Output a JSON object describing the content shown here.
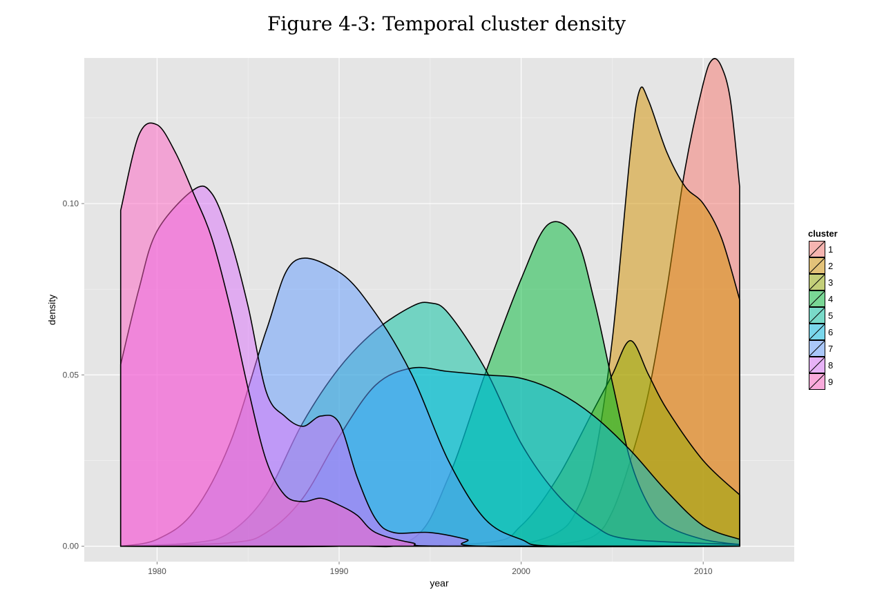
{
  "figure_title": "Figure 4-3: Temporal cluster density",
  "chart_data": {
    "type": "area",
    "title": "",
    "xlabel": "year",
    "ylabel": "density",
    "xlim": [
      1976,
      2015
    ],
    "ylim": [
      -0.0045,
      0.1425
    ],
    "x_ticks": [
      1980,
      1990,
      2000,
      2010
    ],
    "y_ticks": [
      0.0,
      0.05,
      0.1
    ],
    "y_tick_labels": [
      "0.00",
      "0.05",
      "0.10"
    ],
    "grid": true,
    "legend": {
      "title": "cluster",
      "position": "right"
    },
    "series": [
      {
        "name": "1",
        "color": "#F8766D",
        "points": [
          [
            1978,
            0
          ],
          [
            1980,
            0
          ],
          [
            1990,
            0
          ],
          [
            1995,
            0
          ],
          [
            1998,
            0
          ],
          [
            2000,
            0
          ],
          [
            2002,
            0.0005
          ],
          [
            2004,
            0.003
          ],
          [
            2005,
            0.01
          ],
          [
            2006,
            0.025
          ],
          [
            2007,
            0.045
          ],
          [
            2008,
            0.075
          ],
          [
            2009,
            0.11
          ],
          [
            2010,
            0.135
          ],
          [
            2010.5,
            0.142
          ],
          [
            2011,
            0.14
          ],
          [
            2011.5,
            0.13
          ],
          [
            2012,
            0.105
          ]
        ]
      },
      {
        "name": "2",
        "color": "#D39200",
        "points": [
          [
            1978,
            0
          ],
          [
            1990,
            0
          ],
          [
            1998,
            0
          ],
          [
            2000,
            0.0005
          ],
          [
            2002,
            0.004
          ],
          [
            2003,
            0.01
          ],
          [
            2004,
            0.025
          ],
          [
            2005,
            0.06
          ],
          [
            2006,
            0.115
          ],
          [
            2006.5,
            0.133
          ],
          [
            2007,
            0.13
          ],
          [
            2008,
            0.115
          ],
          [
            2009,
            0.105
          ],
          [
            2010,
            0.1
          ],
          [
            2011,
            0.09
          ],
          [
            2012,
            0.072
          ]
        ]
      },
      {
        "name": "3",
        "color": "#93AA00",
        "points": [
          [
            1978,
            0
          ],
          [
            1990,
            0
          ],
          [
            1998,
            0.001
          ],
          [
            2000,
            0.006
          ],
          [
            2002,
            0.02
          ],
          [
            2004,
            0.04
          ],
          [
            2005,
            0.05
          ],
          [
            2006,
            0.06
          ],
          [
            2007,
            0.05
          ],
          [
            2008,
            0.04
          ],
          [
            2010,
            0.025
          ],
          [
            2012,
            0.015
          ]
        ]
      },
      {
        "name": "4",
        "color": "#00BA38",
        "points": [
          [
            1978,
            0
          ],
          [
            1990,
            0
          ],
          [
            1994,
            0.002
          ],
          [
            1996,
            0.02
          ],
          [
            1998,
            0.05
          ],
          [
            2000,
            0.078
          ],
          [
            2001.5,
            0.094
          ],
          [
            2003,
            0.09
          ],
          [
            2004,
            0.072
          ],
          [
            2005,
            0.048
          ],
          [
            2006,
            0.025
          ],
          [
            2007,
            0.012
          ],
          [
            2008,
            0.006
          ],
          [
            2010,
            0.002
          ],
          [
            2012,
            0.0005
          ]
        ]
      },
      {
        "name": "5",
        "color": "#00C19F",
        "points": [
          [
            1978,
            0
          ],
          [
            1982,
            0.001
          ],
          [
            1984,
            0.004
          ],
          [
            1986,
            0.015
          ],
          [
            1988,
            0.036
          ],
          [
            1990,
            0.052
          ],
          [
            1992,
            0.063
          ],
          [
            1994,
            0.07
          ],
          [
            1995,
            0.071
          ],
          [
            1996,
            0.068
          ],
          [
            1998,
            0.052
          ],
          [
            2000,
            0.03
          ],
          [
            2002,
            0.015
          ],
          [
            2004,
            0.006
          ],
          [
            2006,
            0.002
          ],
          [
            2012,
            0.0005
          ]
        ]
      },
      {
        "name": "6",
        "color": "#00B9E3",
        "points": [
          [
            1978,
            0
          ],
          [
            1984,
            0.001
          ],
          [
            1986,
            0.004
          ],
          [
            1988,
            0.014
          ],
          [
            1990,
            0.032
          ],
          [
            1992,
            0.047
          ],
          [
            1994,
            0.052
          ],
          [
            1996,
            0.051
          ],
          [
            1998,
            0.05
          ],
          [
            2000,
            0.049
          ],
          [
            2002,
            0.045
          ],
          [
            2004,
            0.038
          ],
          [
            2006,
            0.028
          ],
          [
            2008,
            0.016
          ],
          [
            2010,
            0.006
          ],
          [
            2012,
            0.002
          ]
        ]
      },
      {
        "name": "7",
        "color": "#619CFF",
        "points": [
          [
            1978,
            0.0
          ],
          [
            1980,
            0.002
          ],
          [
            1982,
            0.01
          ],
          [
            1984,
            0.03
          ],
          [
            1986,
            0.063
          ],
          [
            1987.5,
            0.083
          ],
          [
            1990,
            0.08
          ],
          [
            1992,
            0.068
          ],
          [
            1994,
            0.05
          ],
          [
            1996,
            0.025
          ],
          [
            1998,
            0.008
          ],
          [
            2000,
            0.002
          ],
          [
            2002,
            0
          ],
          [
            2012,
            0
          ]
        ]
      },
      {
        "name": "8",
        "color": "#DB72FB",
        "points": [
          [
            1978,
            0.053
          ],
          [
            1979,
            0.075
          ],
          [
            1980,
            0.092
          ],
          [
            1982,
            0.104
          ],
          [
            1983,
            0.103
          ],
          [
            1984,
            0.09
          ],
          [
            1985,
            0.07
          ],
          [
            1986,
            0.045
          ],
          [
            1987,
            0.038
          ],
          [
            1988,
            0.035
          ],
          [
            1989,
            0.038
          ],
          [
            1990,
            0.036
          ],
          [
            1991,
            0.02
          ],
          [
            1992,
            0.008
          ],
          [
            1993,
            0.004
          ],
          [
            1995,
            0.004
          ],
          [
            1997,
            0.002
          ],
          [
            1998,
            0
          ],
          [
            2012,
            0
          ]
        ]
      },
      {
        "name": "9",
        "color": "#FF61C3",
        "points": [
          [
            1978,
            0.098
          ],
          [
            1979,
            0.12
          ],
          [
            1980,
            0.123
          ],
          [
            1981,
            0.115
          ],
          [
            1982,
            0.103
          ],
          [
            1983,
            0.09
          ],
          [
            1984,
            0.07
          ],
          [
            1985,
            0.046
          ],
          [
            1986,
            0.025
          ],
          [
            1987,
            0.015
          ],
          [
            1988,
            0.013
          ],
          [
            1989,
            0.014
          ],
          [
            1990,
            0.012
          ],
          [
            1991,
            0.009
          ],
          [
            1992,
            0.004
          ],
          [
            1994,
            0.001
          ],
          [
            1996,
            0
          ],
          [
            2012,
            0
          ]
        ]
      }
    ]
  }
}
